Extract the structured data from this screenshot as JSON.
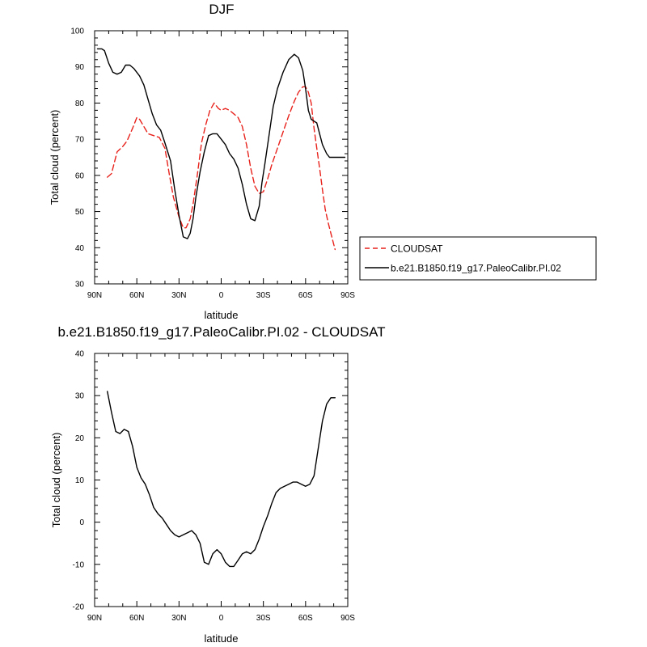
{
  "chart_data": [
    {
      "type": "line",
      "title": "DJF",
      "xlabel": "latitude",
      "ylabel": "Total cloud (percent)",
      "xlim": [
        90,
        -90
      ],
      "ylim": [
        30,
        100
      ],
      "grid": false,
      "legend_position": "right of plot",
      "xticks": [
        90,
        60,
        30,
        0,
        -30,
        -60,
        -90
      ],
      "xtick_labels": [
        "90N",
        "60N",
        "30N",
        "0",
        "30S",
        "60S",
        "90S"
      ],
      "yticks": [
        30,
        40,
        50,
        60,
        70,
        80,
        90,
        100
      ],
      "ytick_labels": [
        "30",
        "40",
        "50",
        "60",
        "70",
        "80",
        "90",
        "100"
      ],
      "series": [
        {
          "name": "CLOUDSAT",
          "color": "#e8211b",
          "dash": "dashed",
          "x": [
            81,
            78,
            74,
            70,
            67,
            63,
            60,
            58,
            55,
            52,
            48,
            44,
            40,
            37,
            34,
            30,
            27,
            25,
            22,
            20,
            17,
            14,
            11,
            8,
            5,
            2,
            0,
            -3,
            -6,
            -9,
            -12,
            -15,
            -18,
            -21,
            -24,
            -27,
            -30,
            -33,
            -36,
            -40,
            -44,
            -48,
            -52,
            -55,
            -58,
            -60,
            -62,
            -64,
            -66,
            -68,
            -70,
            -72,
            -74,
            -76,
            -78,
            -81
          ],
          "y": [
            59.5,
            60.5,
            66.5,
            68,
            69.5,
            73,
            76,
            75.5,
            73.5,
            71.5,
            71,
            70.5,
            67.5,
            60.5,
            54,
            48.5,
            45.5,
            45.5,
            48,
            52,
            60,
            69,
            74,
            78,
            80,
            78.5,
            78,
            78.5,
            78,
            77,
            76,
            73.5,
            68.5,
            62,
            57,
            55,
            55.5,
            59,
            63,
            67.5,
            72,
            76.5,
            80.5,
            83,
            84.5,
            84.5,
            83,
            80,
            73,
            67.5,
            62,
            56,
            50.5,
            47,
            44,
            39.5
          ]
        },
        {
          "name": "b.e21.B1850.f19_g17.PaleoCalibr.PI.02",
          "color": "#000000",
          "dash": "solid",
          "x": [
            88,
            85,
            83,
            80,
            77,
            74,
            71,
            68,
            65,
            62,
            58,
            55,
            52,
            49,
            46,
            43,
            40,
            36,
            33,
            30,
            27,
            24,
            22,
            20,
            18,
            15,
            12,
            9,
            6,
            3,
            0,
            -3,
            -6,
            -9,
            -12,
            -15,
            -18,
            -21,
            -24,
            -27,
            -29,
            -31,
            -34,
            -37,
            -40,
            -44,
            -48,
            -52,
            -55,
            -58,
            -60,
            -62,
            -64,
            -66,
            -68,
            -70,
            -72,
            -75,
            -77,
            -80,
            -83,
            -86,
            -88
          ],
          "y": [
            95,
            95,
            94.5,
            91,
            88.5,
            88,
            88.5,
            90.5,
            90.5,
            89.5,
            87.5,
            85,
            81,
            77,
            74,
            72.5,
            69,
            64,
            56,
            49,
            43,
            42.5,
            44,
            48,
            54,
            61,
            66.5,
            71,
            71.5,
            71.5,
            70,
            68.5,
            66,
            64.5,
            62,
            57.5,
            52,
            48,
            47.5,
            51.5,
            58,
            63,
            71,
            79,
            84,
            88.5,
            92,
            93.5,
            92.5,
            89,
            84,
            78,
            75.5,
            75,
            74.5,
            71.5,
            68.5,
            66,
            65,
            65,
            65,
            65,
            65
          ]
        }
      ]
    },
    {
      "type": "line",
      "title": "b.e21.B1850.f19_g17.PaleoCalibr.PI.02 - CLOUDSAT",
      "xlabel": "latitude",
      "ylabel": "Total cloud (percent)",
      "xlim": [
        90,
        -90
      ],
      "ylim": [
        -20,
        40
      ],
      "grid": false,
      "xticks": [
        90,
        60,
        30,
        0,
        -30,
        -60,
        -90
      ],
      "xtick_labels": [
        "90N",
        "60N",
        "30N",
        "0",
        "30S",
        "60S",
        "90S"
      ],
      "yticks": [
        -20,
        -10,
        0,
        10,
        20,
        30,
        40
      ],
      "ytick_labels": [
        "-20",
        "-10",
        "0",
        "10",
        "20",
        "30",
        "40"
      ],
      "series": [
        {
          "color": "#000000",
          "dash": "solid",
          "x": [
            81,
            78,
            75,
            72,
            69,
            66,
            63,
            60,
            57,
            54,
            51,
            48,
            45,
            42,
            39,
            36,
            33,
            30,
            27,
            24,
            21,
            18,
            15,
            12,
            9,
            6,
            3,
            0,
            -3,
            -6,
            -9,
            -12,
            -15,
            -18,
            -21,
            -24,
            -27,
            -30,
            -33,
            -36,
            -39,
            -42,
            -45,
            -48,
            -51,
            -54,
            -57,
            -60,
            -63,
            -66,
            -69,
            -72,
            -75,
            -78,
            -81
          ],
          "y": [
            31,
            26,
            21.5,
            21,
            22,
            21.5,
            18,
            13,
            10.5,
            9,
            6.5,
            3.5,
            2,
            1,
            -0.5,
            -2,
            -3,
            -3.5,
            -3,
            -2.5,
            -2,
            -3,
            -5,
            -9.5,
            -10,
            -7.5,
            -6.5,
            -7.5,
            -9.5,
            -10.5,
            -10.5,
            -9,
            -7.5,
            -7,
            -7.5,
            -6.5,
            -4,
            -1,
            1.5,
            4.5,
            7,
            8,
            8.5,
            9,
            9.5,
            9.5,
            9,
            8.5,
            9,
            11,
            17.5,
            24,
            28,
            29.5,
            29.5
          ]
        }
      ]
    }
  ]
}
